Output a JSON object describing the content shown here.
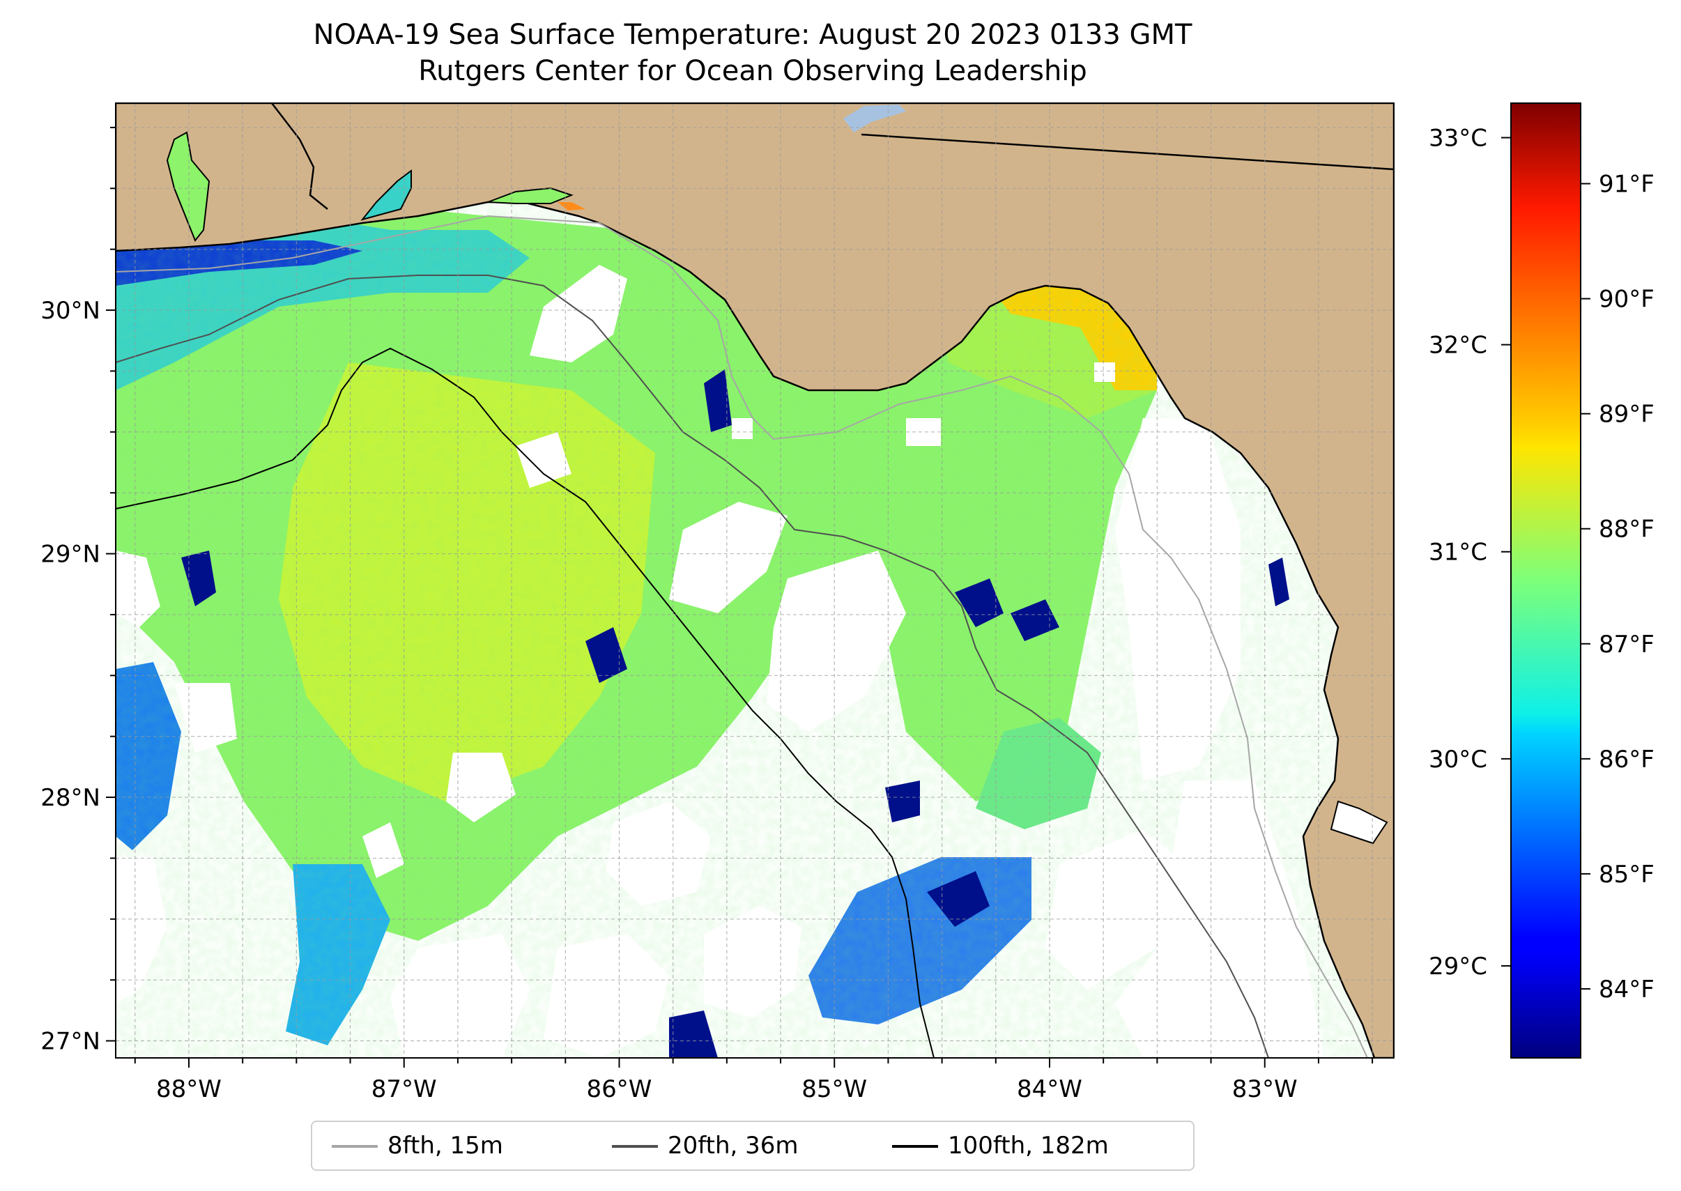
{
  "title": {
    "line1": "NOAA-19 Sea Surface Temperature: August 20 2023 0133 GMT",
    "line2": "Rutgers Center for Ocean Observing Leadership"
  },
  "map": {
    "lon_range": [
      -88.34,
      -82.4
    ],
    "lat_range": [
      26.93,
      30.85
    ],
    "lon_ticks": [
      {
        "value": -88,
        "label": "88°W"
      },
      {
        "value": -87,
        "label": "87°W"
      },
      {
        "value": -86,
        "label": "86°W"
      },
      {
        "value": -85,
        "label": "85°W"
      },
      {
        "value": -84,
        "label": "84°W"
      },
      {
        "value": -83,
        "label": "83°W"
      }
    ],
    "lat_ticks": [
      {
        "value": 30,
        "label": "30°N"
      },
      {
        "value": 29,
        "label": "29°N"
      },
      {
        "value": 28,
        "label": "28°N"
      },
      {
        "value": 27,
        "label": "27°N"
      }
    ],
    "grid": "dashed",
    "land_color": "#d2b48c",
    "no_data_color": "#ffffff"
  },
  "colorbar": {
    "celsius_ticks": [
      {
        "value": 29,
        "label": "29°C"
      },
      {
        "value": 30,
        "label": "30°C"
      },
      {
        "value": 31,
        "label": "31°C"
      },
      {
        "value": 32,
        "label": "32°C"
      },
      {
        "value": 33,
        "label": "33°C"
      }
    ],
    "fahrenheit_ticks": [
      {
        "value": 84,
        "label": "84°F"
      },
      {
        "value": 85,
        "label": "85°F"
      },
      {
        "value": 86,
        "label": "86°F"
      },
      {
        "value": 87,
        "label": "87°F"
      },
      {
        "value": 88,
        "label": "88°F"
      },
      {
        "value": 89,
        "label": "89°F"
      },
      {
        "value": 90,
        "label": "90°F"
      },
      {
        "value": 91,
        "label": "91°F"
      }
    ],
    "range_f": [
      83.4,
      91.7
    ],
    "colormap": "jet"
  },
  "legend": {
    "placement": "bottom-center",
    "items": [
      {
        "label": "8fth, 15m",
        "color": "#a6a6a6"
      },
      {
        "label": "20fth, 36m",
        "color": "#4f4f4f"
      },
      {
        "label": "100fth, 182m",
        "color": "#000000"
      }
    ]
  }
}
